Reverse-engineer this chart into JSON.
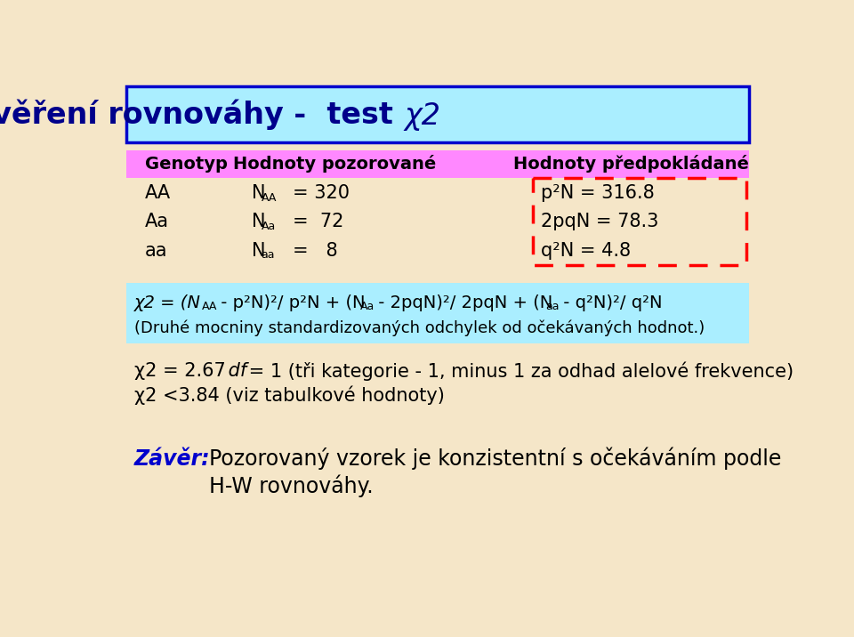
{
  "bg_color": "#F5E6C8",
  "title_bg": "#AAEEFF",
  "title_border": "#0000CC",
  "title_text_color": "#00008B",
  "header_bg": "#FF88FF",
  "formula_bg": "#AAEEFF",
  "text_color": "#000000",
  "dashed_box_color": "#FF0000",
  "conclusion_color": "#0000CD",
  "col1_header": "Genotyp",
  "col2_header": "Hodnoty pozorované",
  "col3_header": "Hodnoty předpokládané",
  "genotypes": [
    "AA",
    "Aa",
    "aa"
  ],
  "obs_subs": [
    "AA",
    "Aa",
    "aa"
  ],
  "obs_vals": [
    "= 320",
    "=  72",
    "=   8"
  ],
  "exp_lines": [
    "p²N = 316.8",
    "2pqN = 78.3",
    "q²N = 4.8"
  ],
  "formula_line2": "(Druhé mocniny standardizovaných odchylek od očekávaných hodnot.)",
  "chi2_line1a": "χ2 = 2.67",
  "chi2_line1b": " df",
  "chi2_line1c": " = 1 (tři kategorie - 1, minus 1 za odhad alelové frekvence)",
  "chi2_line2": "χ2 <3.84 (viz tabulkové hodnoty)",
  "conclusion_label": "Závěr:",
  "conclusion_text1": "Pozorovaný vzorek je konzistentní s očekáváním podle",
  "conclusion_text2": "H-W rovnováhy."
}
